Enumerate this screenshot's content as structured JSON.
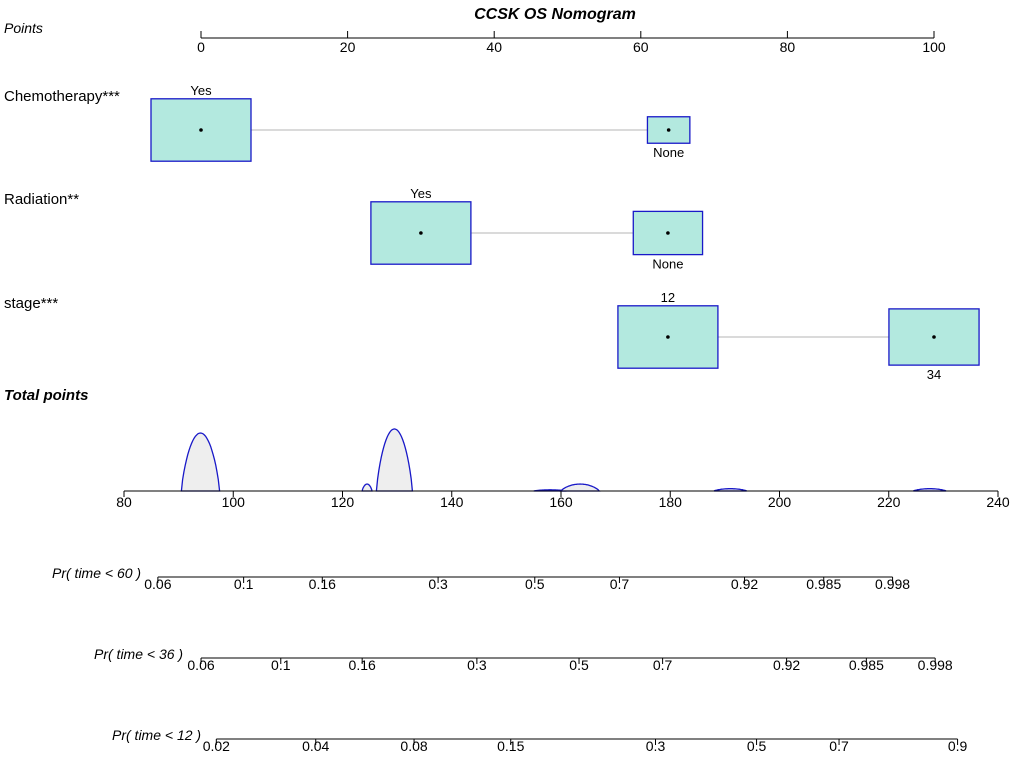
{
  "chart_data": {
    "type": "nomogram",
    "title": "CCSK OS Nomogram",
    "points_axis": {
      "label": "Points",
      "ticks": [
        0,
        20,
        40,
        60,
        80,
        100
      ],
      "range": [
        0,
        100
      ]
    },
    "variables": [
      {
        "name": "Chemotherapy***",
        "levels": [
          {
            "label": "Yes",
            "points": 0,
            "relative_size": 1.0,
            "label_position": "above"
          },
          {
            "label": "None",
            "points": 63.8,
            "relative_size": 0.18,
            "label_position": "below"
          }
        ]
      },
      {
        "name": "Radiation**",
        "levels": [
          {
            "label": "Yes",
            "points": 30,
            "relative_size": 1.0,
            "label_position": "above"
          },
          {
            "label": "None",
            "points": 63.7,
            "relative_size": 0.48,
            "label_position": "below"
          }
        ]
      },
      {
        "name": "stage***",
        "levels": [
          {
            "label": "12",
            "points": 63.7,
            "relative_size": 1.0,
            "label_position": "above"
          },
          {
            "label": "34",
            "points": 100,
            "relative_size": 0.9,
            "label_position": "below"
          }
        ]
      }
    ],
    "total_points": {
      "label": "Total points",
      "ticks": [
        80,
        100,
        120,
        140,
        160,
        180,
        200,
        220,
        240
      ],
      "range": [
        80,
        240
      ],
      "density_peaks": [
        {
          "center": 94,
          "half_width": 3.5,
          "height": 1.0
        },
        {
          "center": 124.5,
          "half_width": 0.9,
          "height": 0.12
        },
        {
          "center": 129.5,
          "half_width": 3.3,
          "height": 1.07
        },
        {
          "center": 158,
          "half_width": 3,
          "height": 0.02
        },
        {
          "center": 163.5,
          "half_width": 3.5,
          "height": 0.12
        },
        {
          "center": 191,
          "half_width": 3,
          "height": 0.04
        },
        {
          "center": 227.5,
          "half_width": 3,
          "height": 0.04
        }
      ]
    },
    "probability_axes": [
      {
        "label": "Pr( time < 60 )",
        "ticks": [
          {
            "label": "0.06",
            "total_points": 86.2
          },
          {
            "label": "0.1",
            "total_points": 101.9
          },
          {
            "label": "0.16",
            "total_points": 116.3
          },
          {
            "label": "0.3",
            "total_points": 137.5
          },
          {
            "label": "0.5",
            "total_points": 155.2
          },
          {
            "label": "0.7",
            "total_points": 170.7
          },
          {
            "label": "0.92",
            "total_points": 193.6
          },
          {
            "label": "0.985",
            "total_points": 208.1
          },
          {
            "label": "0.998",
            "total_points": 220.7
          }
        ]
      },
      {
        "label": "Pr( time < 36 )",
        "ticks": [
          {
            "label": "0.06",
            "total_points": 94.1
          },
          {
            "label": "0.1",
            "total_points": 108.7
          },
          {
            "label": "0.16",
            "total_points": 123.6
          },
          {
            "label": "0.3",
            "total_points": 144.6
          },
          {
            "label": "0.5",
            "total_points": 163.3
          },
          {
            "label": "0.7",
            "total_points": 178.6
          },
          {
            "label": "0.92",
            "total_points": 201.3
          },
          {
            "label": "0.985",
            "total_points": 215.9
          },
          {
            "label": "0.998",
            "total_points": 228.5
          }
        ]
      },
      {
        "label": "Pr( time < 12 )",
        "ticks": [
          {
            "label": "0.02",
            "total_points": 96.9
          },
          {
            "label": "0.04",
            "total_points": 115.1
          },
          {
            "label": "0.08",
            "total_points": 133.1
          },
          {
            "label": "0.15",
            "total_points": 150.8
          },
          {
            "label": "0.3",
            "total_points": 177.3
          },
          {
            "label": "0.5",
            "total_points": 195.8
          },
          {
            "label": "0.7",
            "total_points": 210.9
          },
          {
            "label": "0.9",
            "total_points": 232.6
          }
        ]
      }
    ]
  },
  "colors": {
    "box_fill": "#b3e9df",
    "box_stroke": "#1919c8",
    "density_fill": "#eeeeee",
    "density_stroke": "#1919c8",
    "connector": "#b4b4b4",
    "axis": "#000000"
  }
}
